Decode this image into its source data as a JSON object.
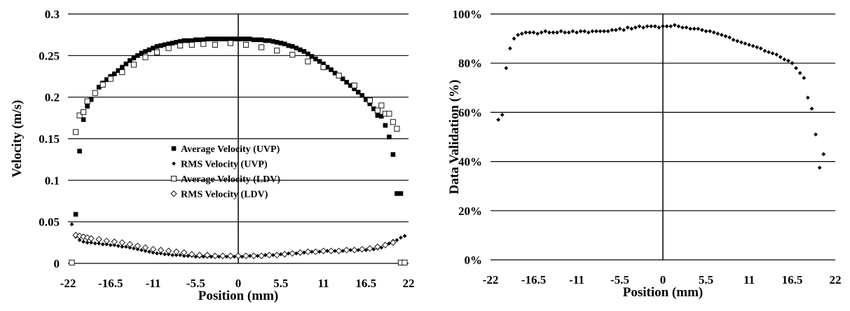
{
  "chart_data": [
    {
      "type": "scatter",
      "xlabel": "Position (mm)",
      "ylabel": "Velocity (m/s)",
      "xlim": [
        -22,
        22
      ],
      "ylim": [
        0,
        0.3
      ],
      "xticks": [
        "-22",
        "-16.5",
        "-11",
        "-5.5",
        "0",
        "5.5",
        "11",
        "16.5",
        "22"
      ],
      "yticks": [
        "0",
        "0.05",
        "0.1",
        "0.15",
        "0.2",
        "0.25",
        "0.3"
      ],
      "grid": "horizontal",
      "legend_position": "center",
      "series": [
        {
          "name": "Average Velocity (UVP)",
          "marker": "filled-square",
          "x": [
            -21.0,
            -20.5,
            -20.0,
            -19.5,
            -19.0,
            -18.5,
            -18.0,
            -17.5,
            -17.0,
            -16.5,
            -16.0,
            -15.5,
            -15.0,
            -14.5,
            -14.0,
            -13.5,
            -13.0,
            -12.5,
            -12.0,
            -11.5,
            -11.0,
            -10.5,
            -10.0,
            -9.5,
            -9.0,
            -8.5,
            -8.0,
            -7.5,
            -7.0,
            -6.5,
            -6.0,
            -5.5,
            -5.0,
            -4.5,
            -4.0,
            -3.5,
            -3.0,
            -2.5,
            -2.0,
            -1.5,
            -1.0,
            -0.5,
            0.0,
            0.5,
            1.0,
            1.5,
            2.0,
            2.5,
            3.0,
            3.5,
            4.0,
            4.5,
            5.0,
            5.5,
            6.0,
            6.5,
            7.0,
            7.5,
            8.0,
            8.5,
            9.0,
            9.5,
            10.0,
            10.5,
            11.0,
            11.5,
            12.0,
            12.5,
            13.0,
            13.5,
            14.0,
            14.5,
            15.0,
            15.5,
            16.0,
            16.5,
            17.0,
            17.5,
            18.0,
            18.5,
            19.0,
            19.5,
            20.0,
            20.5,
            21.0
          ],
          "values": [
            0.059,
            0.135,
            0.173,
            0.189,
            0.197,
            0.205,
            0.212,
            0.217,
            0.221,
            0.225,
            0.228,
            0.232,
            0.236,
            0.24,
            0.244,
            0.247,
            0.25,
            0.253,
            0.255,
            0.257,
            0.259,
            0.261,
            0.262,
            0.263,
            0.264,
            0.265,
            0.266,
            0.267,
            0.268,
            0.268,
            0.268,
            0.269,
            0.269,
            0.269,
            0.27,
            0.27,
            0.27,
            0.27,
            0.27,
            0.27,
            0.27,
            0.27,
            0.27,
            0.27,
            0.27,
            0.27,
            0.269,
            0.269,
            0.269,
            0.268,
            0.268,
            0.267,
            0.266,
            0.265,
            0.264,
            0.262,
            0.261,
            0.259,
            0.257,
            0.255,
            0.252,
            0.249,
            0.246,
            0.243,
            0.24,
            0.236,
            0.233,
            0.229,
            0.226,
            0.222,
            0.218,
            0.214,
            0.21,
            0.206,
            0.202,
            0.197,
            0.192,
            0.186,
            0.178,
            0.177,
            0.166,
            0.152,
            0.131,
            0.084,
            0.084
          ]
        },
        {
          "name": "RMS Velocity (UVP)",
          "marker": "filled-diamond",
          "x": [
            -21.5,
            -21.0,
            -20.5,
            -20.0,
            -19.5,
            -19.0,
            -18.5,
            -18.0,
            -17.5,
            -17.0,
            -16.5,
            -16.0,
            -15.5,
            -15.0,
            -14.5,
            -14.0,
            -13.5,
            -13.0,
            -12.5,
            -12.0,
            -11.5,
            -11.0,
            -10.5,
            -10.0,
            -9.5,
            -9.0,
            -8.5,
            -8.0,
            -7.5,
            -7.0,
            -6.5,
            -6.0,
            -5.5,
            -5.0,
            -4.5,
            -4.0,
            -3.5,
            -3.0,
            -2.5,
            -2.0,
            -1.5,
            -1.0,
            -0.5,
            0.0,
            0.5,
            1.0,
            1.5,
            2.0,
            2.5,
            3.0,
            3.5,
            4.0,
            4.5,
            5.0,
            5.5,
            6.0,
            6.5,
            7.0,
            7.5,
            8.0,
            8.5,
            9.0,
            9.5,
            10.0,
            10.5,
            11.0,
            11.5,
            12.0,
            12.5,
            13.0,
            13.5,
            14.0,
            14.5,
            15.0,
            15.5,
            16.0,
            16.5,
            17.0,
            17.5,
            18.0,
            18.5,
            19.0,
            19.5,
            20.0,
            20.5,
            21.0,
            21.5
          ],
          "values": [
            0.047,
            0.032,
            0.028,
            0.026,
            0.025,
            0.025,
            0.024,
            0.024,
            0.023,
            0.023,
            0.022,
            0.022,
            0.021,
            0.02,
            0.02,
            0.019,
            0.018,
            0.017,
            0.016,
            0.015,
            0.014,
            0.013,
            0.012,
            0.012,
            0.011,
            0.011,
            0.01,
            0.01,
            0.01,
            0.009,
            0.009,
            0.009,
            0.008,
            0.008,
            0.008,
            0.008,
            0.008,
            0.008,
            0.008,
            0.008,
            0.008,
            0.008,
            0.008,
            0.008,
            0.008,
            0.008,
            0.009,
            0.009,
            0.009,
            0.009,
            0.01,
            0.01,
            0.01,
            0.011,
            0.011,
            0.011,
            0.012,
            0.012,
            0.012,
            0.013,
            0.013,
            0.013,
            0.014,
            0.014,
            0.014,
            0.014,
            0.015,
            0.015,
            0.015,
            0.015,
            0.015,
            0.015,
            0.016,
            0.016,
            0.016,
            0.016,
            0.016,
            0.017,
            0.017,
            0.018,
            0.019,
            0.021,
            0.024,
            0.027,
            0.028,
            0.031,
            0.033
          ]
        },
        {
          "name": "Average Velocity (LDV)",
          "marker": "open-square",
          "x": [
            -21.5,
            -21.0,
            -20.5,
            -20.0,
            -19.5,
            -18.5,
            -17.5,
            -16.5,
            -15.0,
            -13.5,
            -12.0,
            -10.5,
            -9.0,
            -7.5,
            -6.0,
            -4.5,
            -3.0,
            -1.0,
            1.0,
            3.0,
            5.0,
            7.0,
            9.0,
            11.0,
            13.0,
            15.0,
            17.0,
            18.0,
            18.5,
            19.0,
            19.5,
            20.0,
            20.5,
            21.0,
            21.5
          ],
          "values": [
            0.001,
            0.158,
            0.178,
            0.182,
            0.195,
            0.205,
            0.215,
            0.222,
            0.23,
            0.239,
            0.248,
            0.254,
            0.259,
            0.262,
            0.263,
            0.264,
            0.263,
            0.265,
            0.263,
            0.26,
            0.256,
            0.251,
            0.243,
            0.236,
            0.226,
            0.214,
            0.196,
            0.184,
            0.19,
            0.18,
            0.18,
            0.17,
            0.162,
            0.001,
            0.001
          ]
        },
        {
          "name": "RMS Velocity (LDV)",
          "marker": "open-diamond",
          "x": [
            -21.0,
            -20.5,
            -20.0,
            -19.5,
            -19.0,
            -18.0,
            -17.0,
            -16.0,
            -15.0,
            -14.0,
            -13.0,
            -12.0,
            -11.0,
            -10.0,
            -9.0,
            -8.0,
            -7.0,
            -6.0,
            -5.0,
            -4.0,
            -3.0,
            -2.0,
            -1.0,
            0.0,
            1.0,
            2.0,
            3.0,
            4.0,
            5.0,
            6.0,
            7.0,
            8.0,
            9.0,
            10.0,
            11.0,
            12.0,
            13.0,
            14.0,
            15.0,
            16.0,
            17.0,
            18.0,
            19.0,
            20.0
          ],
          "values": [
            0.034,
            0.033,
            0.032,
            0.031,
            0.03,
            0.029,
            0.027,
            0.026,
            0.025,
            0.023,
            0.021,
            0.019,
            0.017,
            0.016,
            0.015,
            0.014,
            0.013,
            0.011,
            0.01,
            0.01,
            0.009,
            0.009,
            0.009,
            0.009,
            0.009,
            0.009,
            0.009,
            0.01,
            0.01,
            0.011,
            0.012,
            0.013,
            0.014,
            0.014,
            0.015,
            0.015,
            0.015,
            0.016,
            0.016,
            0.017,
            0.018,
            0.02,
            0.022,
            0.025
          ]
        }
      ]
    },
    {
      "type": "scatter",
      "xlabel": "Position (mm)",
      "ylabel": "Data Validation (%)",
      "xlim": [
        -22,
        22
      ],
      "ylim": [
        0,
        100
      ],
      "xticks": [
        "-22",
        "-16.5",
        "-11",
        "-5.5",
        "0",
        "5.5",
        "11",
        "16.5",
        "22"
      ],
      "yticks": [
        "0%",
        "20%",
        "40%",
        "60%",
        "80%",
        "100%"
      ],
      "grid": "horizontal",
      "series": [
        {
          "marker": "filled-diamond",
          "x": [
            -21.0,
            -20.5,
            -20.0,
            -19.5,
            -19.0,
            -18.5,
            -18.0,
            -17.5,
            -17.0,
            -16.5,
            -16.0,
            -15.5,
            -15.0,
            -14.5,
            -14.0,
            -13.5,
            -13.0,
            -12.5,
            -12.0,
            -11.5,
            -11.0,
            -10.5,
            -10.0,
            -9.5,
            -9.0,
            -8.5,
            -8.0,
            -7.5,
            -7.0,
            -6.5,
            -6.0,
            -5.5,
            -5.0,
            -4.5,
            -4.0,
            -3.5,
            -3.0,
            -2.5,
            -2.0,
            -1.5,
            -1.0,
            -0.5,
            0.0,
            0.5,
            1.0,
            1.5,
            2.0,
            2.5,
            3.0,
            3.5,
            4.0,
            4.5,
            5.0,
            5.5,
            6.0,
            6.5,
            7.0,
            7.5,
            8.0,
            8.5,
            9.0,
            9.5,
            10.0,
            10.5,
            11.0,
            11.5,
            12.0,
            12.5,
            13.0,
            13.5,
            14.0,
            14.5,
            15.0,
            15.5,
            16.0,
            16.5,
            17.0,
            17.5,
            18.0,
            18.5,
            19.0,
            19.5,
            20.0,
            20.5
          ],
          "values": [
            57,
            59,
            78,
            86,
            90,
            91.5,
            92,
            92.5,
            92.5,
            92.5,
            92,
            92.5,
            93,
            92.5,
            92.5,
            92.5,
            93,
            92.5,
            92.5,
            93,
            92.5,
            93,
            93,
            92.5,
            93,
            93,
            93,
            93,
            93,
            93.5,
            93.5,
            94,
            93.5,
            94.5,
            94,
            94.5,
            95,
            94.5,
            95,
            95,
            95,
            94.5,
            95,
            95,
            95,
            95.5,
            95,
            94.5,
            94.5,
            94,
            94,
            94,
            93.5,
            93,
            93,
            92.5,
            92,
            91.5,
            91,
            90.5,
            89.5,
            89,
            88.5,
            88,
            87.5,
            87,
            86.5,
            86,
            85,
            84.5,
            84,
            83.5,
            82.5,
            81.5,
            81,
            80,
            78,
            76,
            74,
            66,
            61.5,
            51,
            37.5,
            43
          ]
        }
      ]
    }
  ],
  "legend": [
    "Average Velocity (UVP)",
    "RMS Velocity (UVP)",
    "Average Velocity (LDV)",
    "RMS Velocity (LDV)"
  ]
}
